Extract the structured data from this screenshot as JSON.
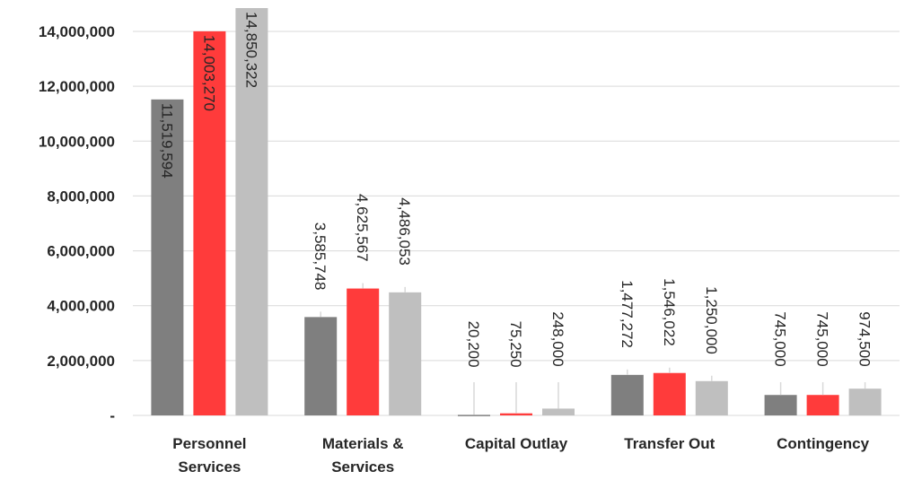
{
  "chart_data": {
    "type": "bar",
    "categories": [
      [
        "Personnel",
        "Services"
      ],
      [
        "Materials &",
        "Services"
      ],
      [
        "Capital Outlay"
      ],
      [
        "Transfer Out"
      ],
      [
        "Contingency"
      ]
    ],
    "series": [
      {
        "color": "#7f7f7f",
        "values": [
          11519594,
          3585748,
          20200,
          1477272,
          745000
        ],
        "labels": [
          "11,519,594",
          "3,585,748",
          "20,200",
          "1,477,272",
          "745,000"
        ]
      },
      {
        "color": "#ff3b3b",
        "values": [
          14003270,
          4625567,
          75250,
          1546022,
          745000
        ],
        "labels": [
          "14,003,270",
          "4,625,567",
          "75,250",
          "1,546,022",
          "745,000"
        ]
      },
      {
        "color": "#bfbfbf",
        "values": [
          14850322,
          4486053,
          248000,
          1250000,
          974500
        ],
        "labels": [
          "14,850,322",
          "4,486,053",
          "248,000",
          "1,250,000",
          "974,500"
        ]
      }
    ],
    "ylim": [
      0,
      14000000
    ],
    "yticks": [
      0,
      2000000,
      4000000,
      6000000,
      8000000,
      10000000,
      12000000,
      14000000
    ],
    "ytick_labels": [
      "-",
      "2,000,000",
      "4,000,000",
      "6,000,000",
      "8,000,000",
      "10,000,000",
      "12,000,000",
      "14,000,000"
    ],
    "grid": true,
    "legend": "none",
    "title": "",
    "xlabel": "",
    "ylabel": ""
  }
}
